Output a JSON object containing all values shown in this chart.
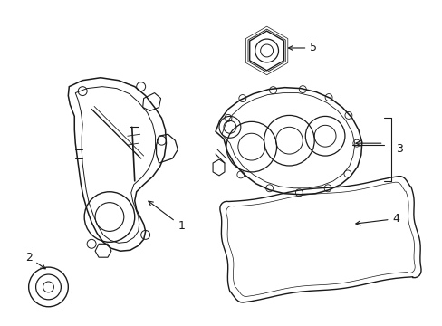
{
  "background_color": "#ffffff",
  "line_color": "#1a1a1a",
  "lw": 1.0,
  "fig_w": 4.89,
  "fig_h": 3.6,
  "dpi": 100
}
